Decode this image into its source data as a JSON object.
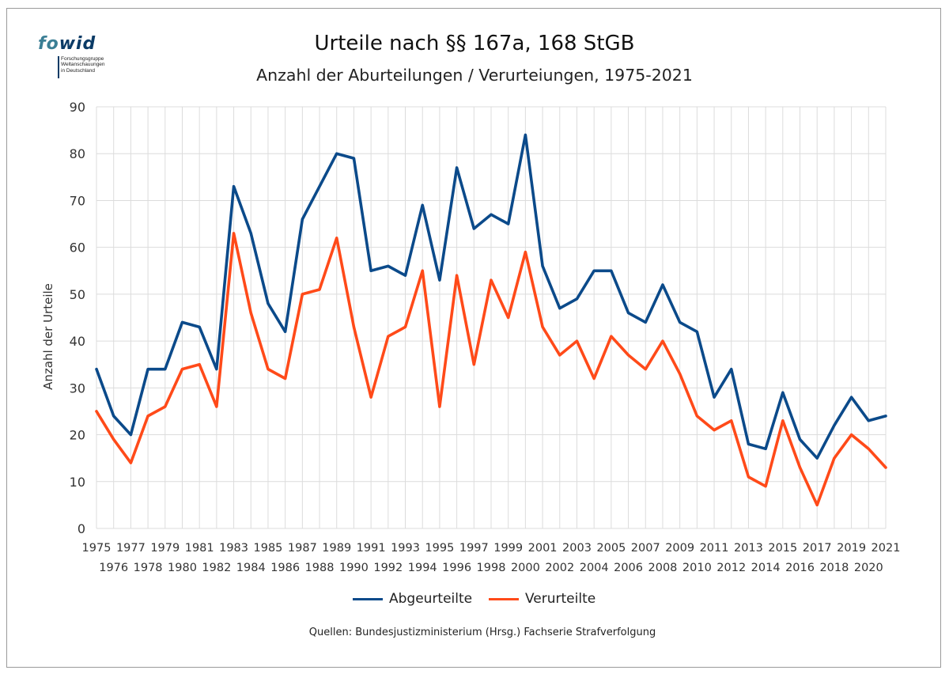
{
  "logo": {
    "word_part1": "fo",
    "word_part2": "wid",
    "tagline": [
      "Forschungsgruppe",
      "Weltanschauungen",
      "in Deutschland"
    ]
  },
  "colors": {
    "series1": "#0b4a8a",
    "series2": "#ff4a19",
    "grid": "#dcdcdc",
    "axis_text": "#333333",
    "logo_light": "#3b7f95",
    "logo_dark": "#0b3b66"
  },
  "chart_data": {
    "type": "line",
    "title": "Urteile nach §§ 167a, 168 StGB",
    "subtitle": "Anzahl der Aburteilungen / Verurteiungen, 1975-2021",
    "xlabel": "",
    "ylabel": "Anzahl der Urteile",
    "ylim": [
      0,
      90
    ],
    "yticks": [
      0,
      10,
      20,
      30,
      40,
      50,
      60,
      70,
      80,
      90
    ],
    "grid": true,
    "legend_position": "bottom",
    "x": [
      1975,
      1976,
      1977,
      1978,
      1979,
      1980,
      1981,
      1982,
      1983,
      1984,
      1985,
      1986,
      1987,
      1988,
      1989,
      1990,
      1991,
      1992,
      1993,
      1994,
      1995,
      1996,
      1997,
      1998,
      1999,
      2000,
      2001,
      2002,
      2003,
      2004,
      2005,
      2006,
      2007,
      2008,
      2009,
      2010,
      2011,
      2012,
      2013,
      2014,
      2015,
      2016,
      2017,
      2018,
      2019,
      2020,
      2021
    ],
    "series": [
      {
        "name": "Abgeurteilte",
        "values": [
          34,
          24,
          20,
          34,
          34,
          44,
          43,
          34,
          73,
          63,
          48,
          42,
          66,
          73,
          80,
          79,
          55,
          56,
          54,
          69,
          53,
          77,
          64,
          67,
          65,
          84,
          56,
          47,
          49,
          55,
          55,
          46,
          44,
          52,
          44,
          42,
          28,
          34,
          18,
          17,
          29,
          19,
          15,
          22,
          28,
          23,
          24
        ]
      },
      {
        "name": "Verurteilte",
        "values": [
          25,
          19,
          14,
          24,
          26,
          34,
          35,
          26,
          63,
          46,
          34,
          32,
          50,
          51,
          62,
          43,
          28,
          41,
          43,
          55,
          26,
          54,
          35,
          53,
          45,
          59,
          43,
          37,
          40,
          32,
          41,
          37,
          34,
          40,
          33,
          24,
          21,
          23,
          11,
          9,
          23,
          13,
          5,
          15,
          20,
          17,
          13
        ]
      }
    ]
  },
  "source": "Quellen: Bundesjustizministerium (Hrsg.) Fachserie Strafverfolgung"
}
